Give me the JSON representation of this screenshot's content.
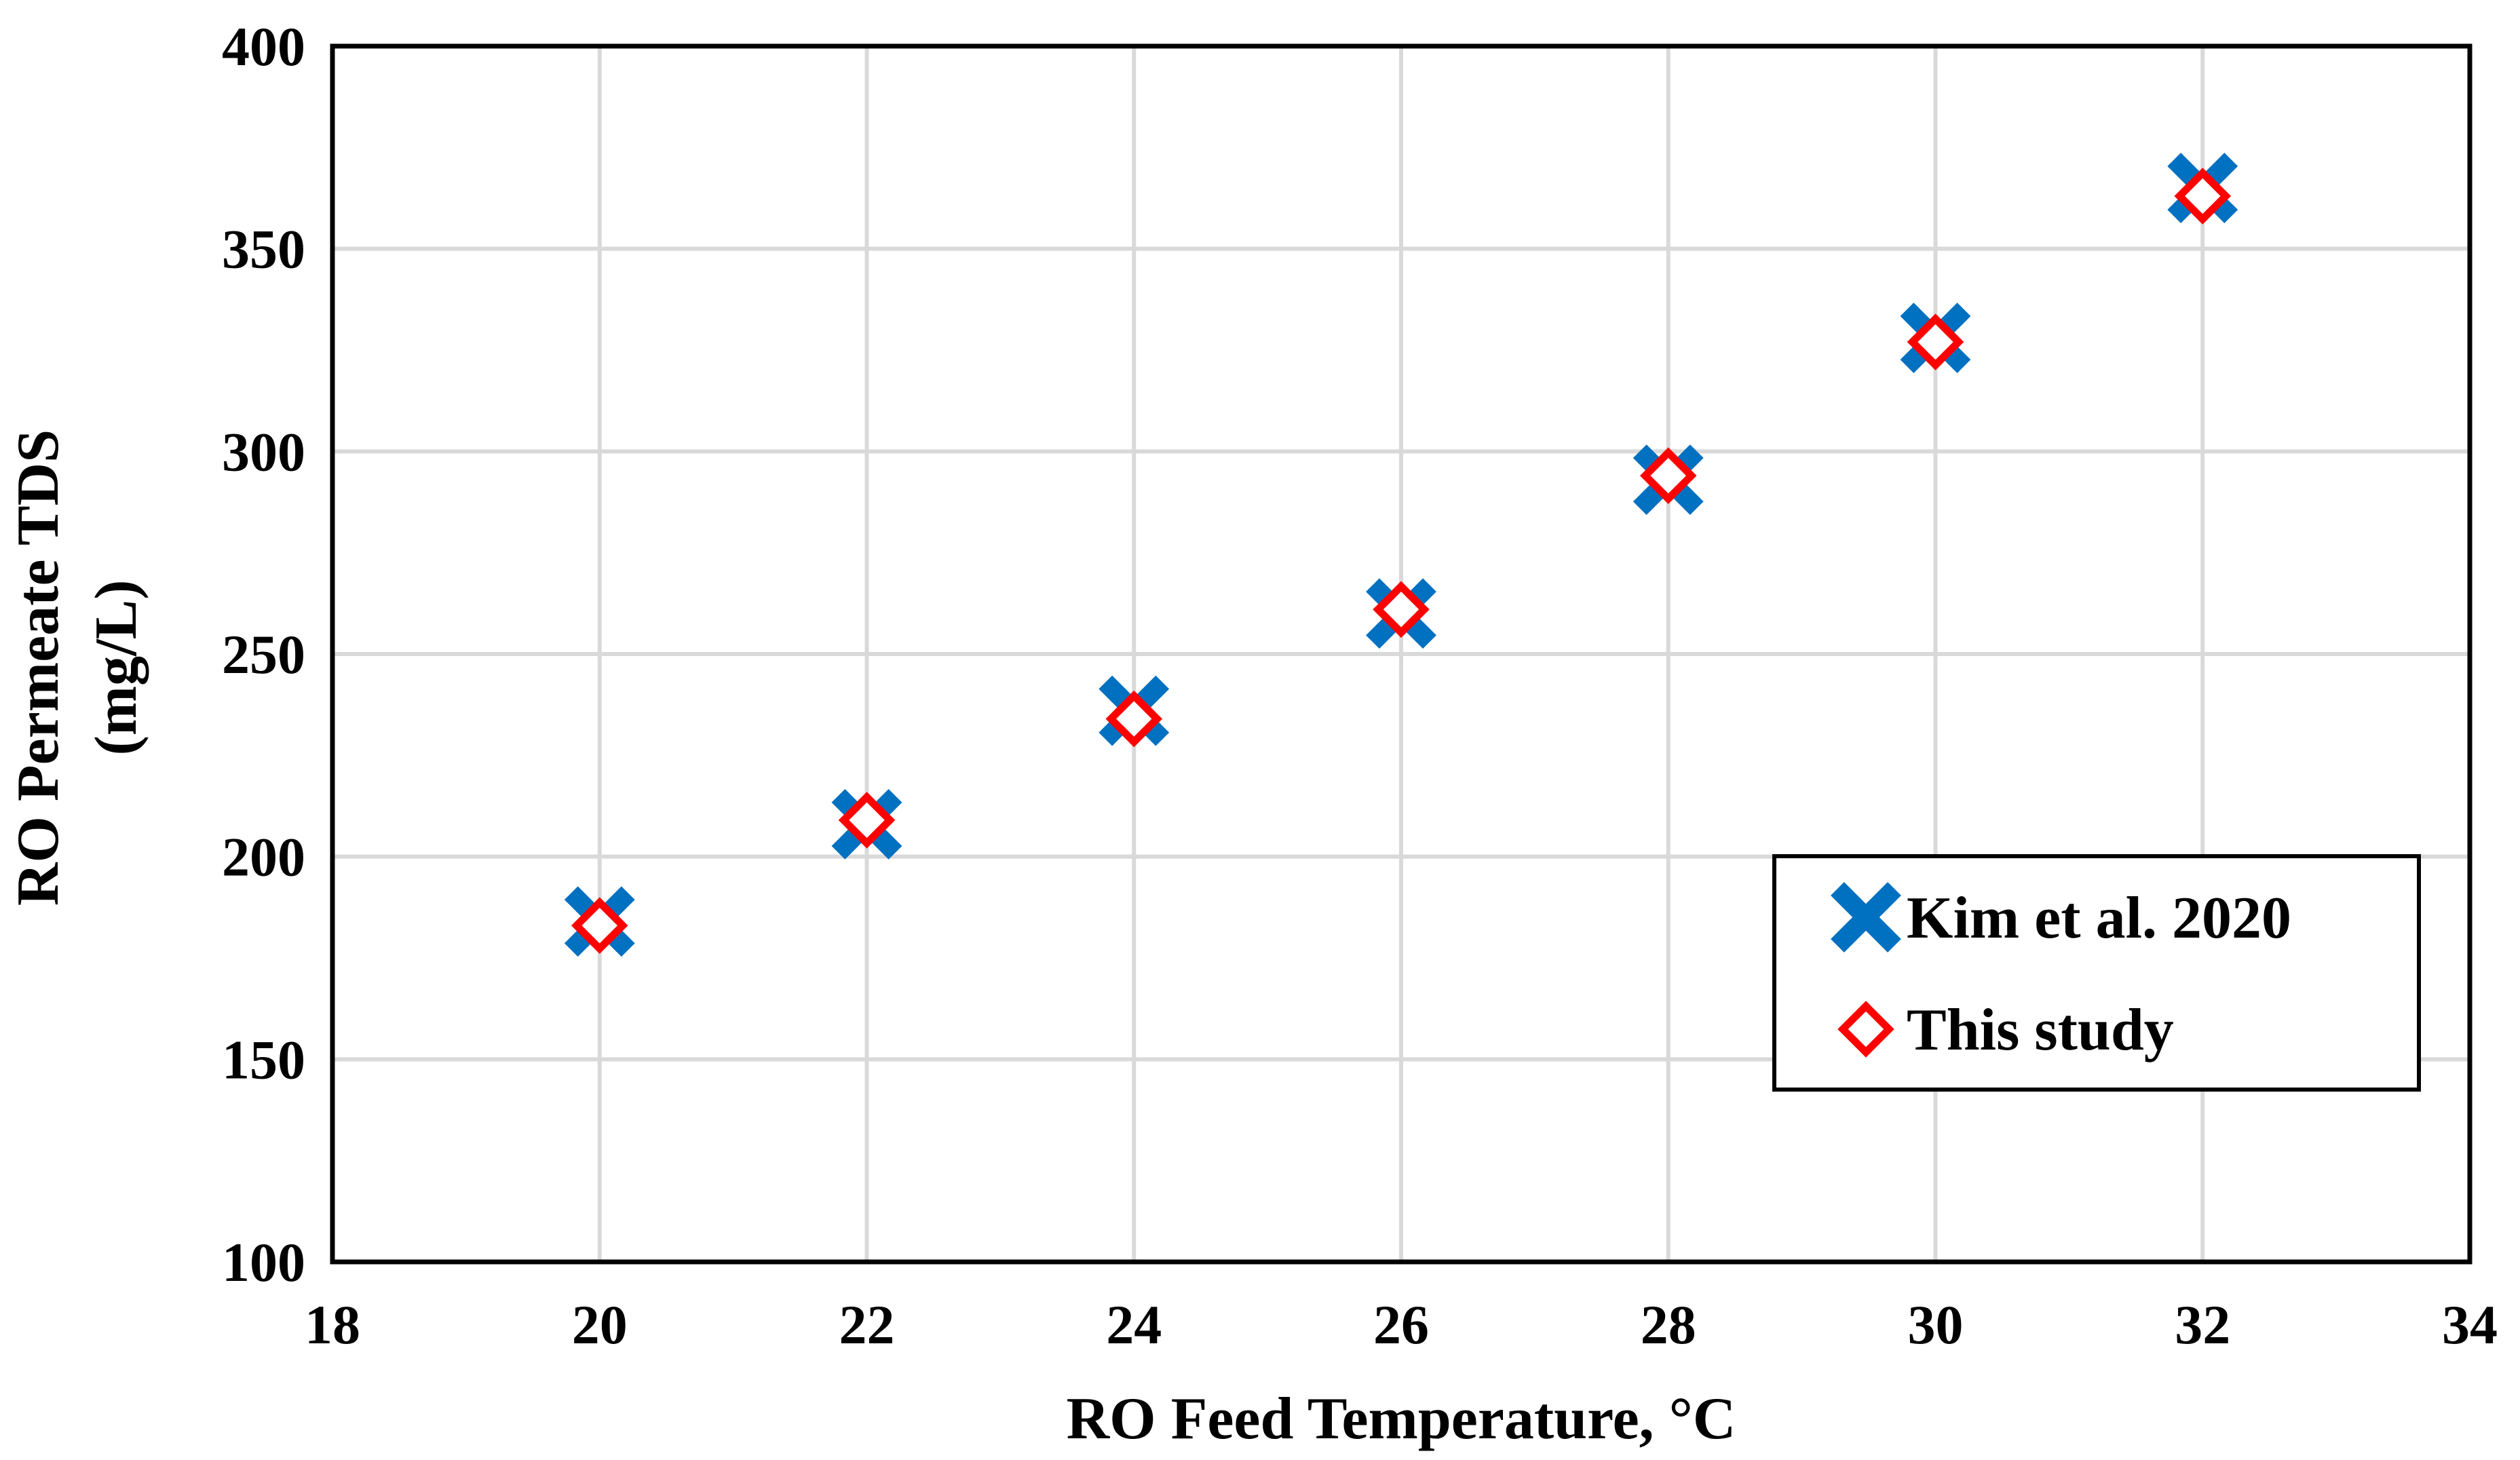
{
  "chart_data": {
    "type": "scatter",
    "title": "",
    "xlabel": "RO Feed Temperature, °C",
    "ylabel_line1": "RO Permeate TDS",
    "ylabel_line2": "(mg/L)",
    "xlim": [
      18,
      34
    ],
    "ylim": [
      100,
      400
    ],
    "xticks": [
      "18",
      "20",
      "22",
      "24",
      "26",
      "28",
      "30",
      "32",
      "34"
    ],
    "yticks": [
      "100",
      "150",
      "200",
      "250",
      "300",
      "350",
      "400"
    ],
    "grid": true,
    "legend_position": "right",
    "series": [
      {
        "name": "Kim et al. 2020",
        "marker": "x",
        "color": "#0070C0",
        "x": [
          20,
          22,
          24,
          26,
          28,
          30,
          32
        ],
        "y": [
          184,
          208,
          236,
          260,
          293,
          328,
          365
        ]
      },
      {
        "name": "This study",
        "marker": "diamond-open",
        "color": "#FF0000",
        "x": [
          20,
          22,
          24,
          26,
          28,
          30,
          32
        ],
        "y": [
          183,
          209,
          234,
          261,
          294,
          327,
          363
        ]
      }
    ]
  }
}
